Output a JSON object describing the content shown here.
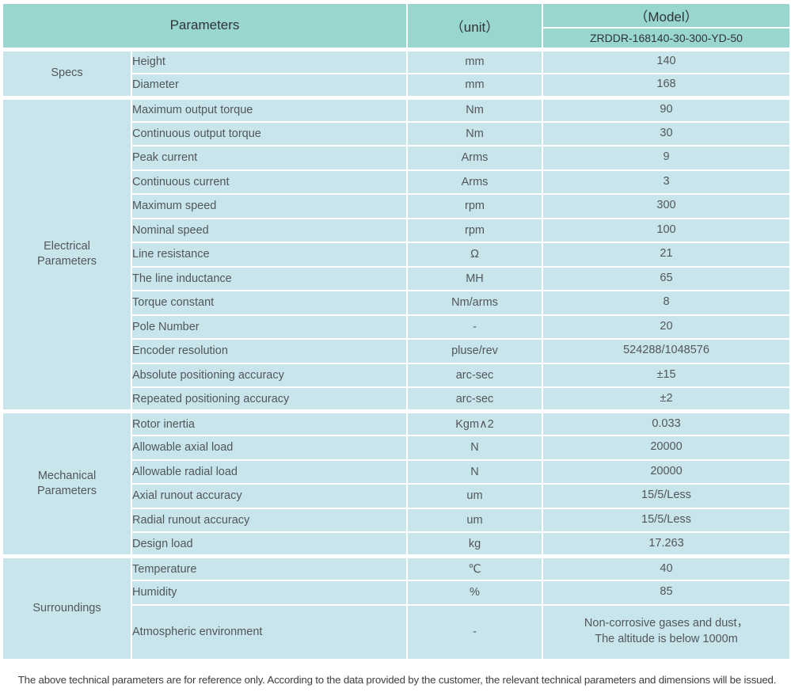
{
  "header": {
    "parameters": "Parameters",
    "unit": "（unit）",
    "model": "（Model）",
    "model_number": "ZRDDR-168140-30-300-YD-50"
  },
  "sections": [
    {
      "label": "Specs",
      "rows": [
        {
          "param": "Height",
          "unit": "mm",
          "value": "140"
        },
        {
          "param": "Diameter",
          "unit": "mm",
          "value": "168"
        }
      ]
    },
    {
      "label": "Electrical Parameters",
      "rows": [
        {
          "param": "Maximum output torque",
          "unit": "Nm",
          "value": "90"
        },
        {
          "param": "Continuous output torque",
          "unit": "Nm",
          "value": "30"
        },
        {
          "param": "Peak current",
          "unit": "Arms",
          "value": "9"
        },
        {
          "param": "Continuous current",
          "unit": "Arms",
          "value": "3"
        },
        {
          "param": "Maximum speed",
          "unit": "rpm",
          "value": "300"
        },
        {
          "param": "Nominal speed",
          "unit": "rpm",
          "value": "100"
        },
        {
          "param": "Line resistance",
          "unit": "Ω",
          "value": "21"
        },
        {
          "param": "The line inductance",
          "unit": "MH",
          "value": "65"
        },
        {
          "param": "Torque constant",
          "unit": "Nm/arms",
          "value": "8"
        },
        {
          "param": "Pole Number",
          "unit": "-",
          "value": "20"
        },
        {
          "param": "Encoder resolution",
          "unit": "pluse/rev",
          "value": "524288/1048576"
        },
        {
          "param": "Absolute positioning accuracy",
          "unit": "arc-sec",
          "value": "±15"
        },
        {
          "param": "Repeated positioning accuracy",
          "unit": "arc-sec",
          "value": "±2"
        }
      ]
    },
    {
      "label": "Mechanical Parameters",
      "rows": [
        {
          "param": "Rotor inertia",
          "unit": "Kgm∧2",
          "value": "0.033"
        },
        {
          "param": "Allowable axial load",
          "unit": "N",
          "value": "20000"
        },
        {
          "param": "Allowable radial load",
          "unit": "N",
          "value": "20000"
        },
        {
          "param": "Axial runout accuracy",
          "unit": "um",
          "value": "15/5/Less"
        },
        {
          "param": "Radial runout accuracy",
          "unit": "um",
          "value": "15/5/Less"
        },
        {
          "param": "Design load",
          "unit": "kg",
          "value": "17.263"
        }
      ]
    },
    {
      "label": "Surroundings",
      "rows": [
        {
          "param": "Temperature",
          "unit": "℃",
          "value": "40"
        },
        {
          "param": "Humidity",
          "unit": "%",
          "value": "85"
        },
        {
          "param": "Atmospheric environment",
          "unit": "-",
          "value": "Non-corrosive gases and dust，",
          "value2": "The altitude is below 1000m"
        }
      ]
    }
  ],
  "footer": {
    "note": "The above technical parameters are for reference only. According to the data provided by the customer, the relevant technical parameters and dimensions will be issued."
  },
  "colors": {
    "header_bg": "#99d6cf",
    "cell_bg": "#c9e5ec",
    "border": "#ffffff",
    "header_text": "#2f3437",
    "body_text": "#51565a"
  }
}
